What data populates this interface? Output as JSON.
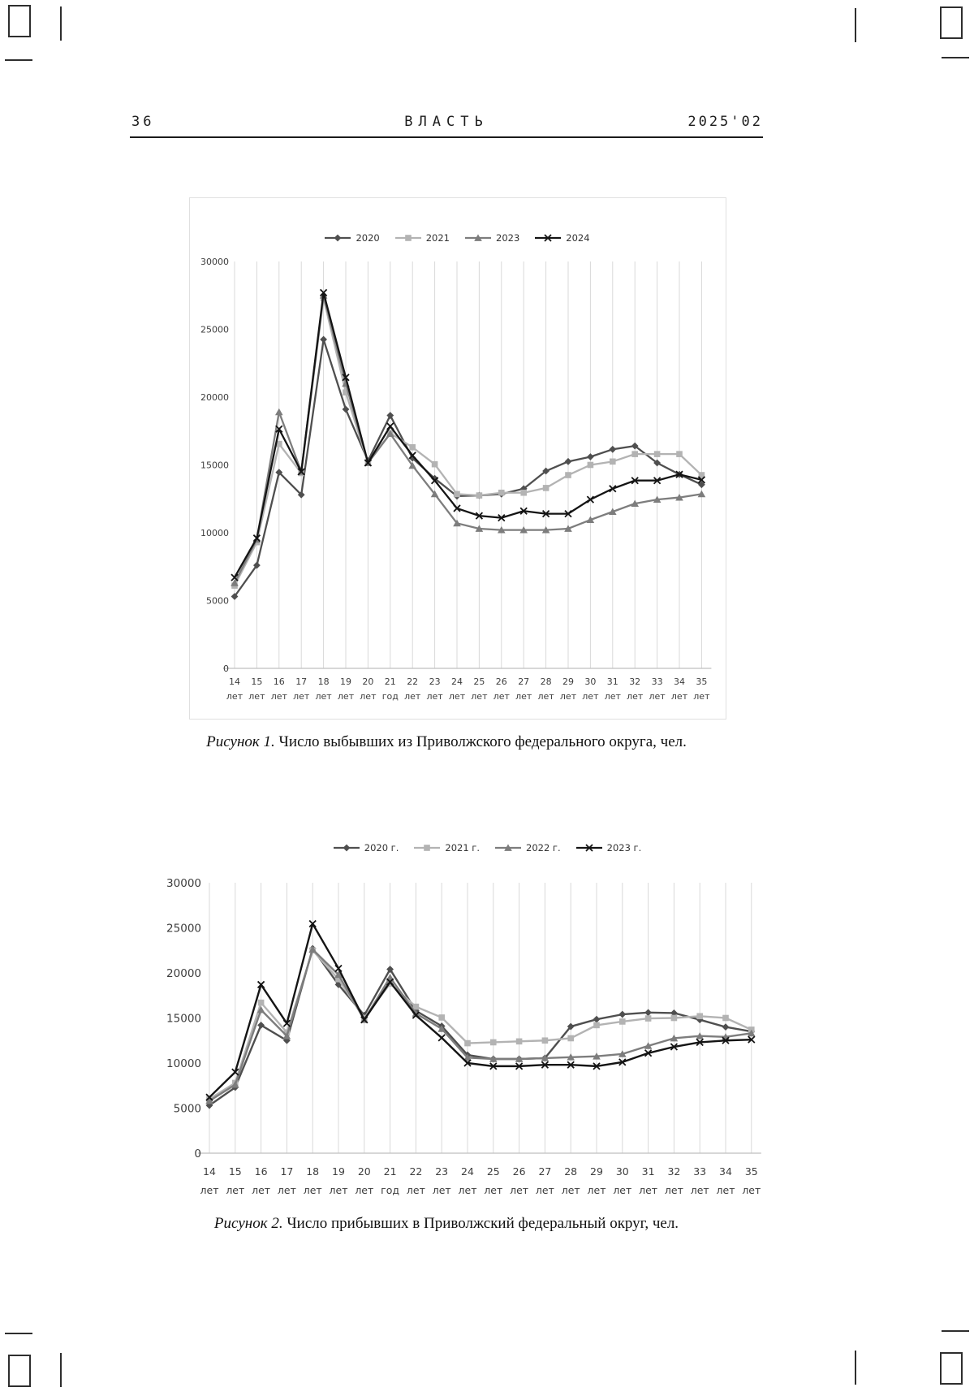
{
  "header": {
    "page_number": "36",
    "journal_title": "ВЛАСТЬ",
    "issue": "2025'02"
  },
  "figures": [
    {
      "caption_label": "Рисунок 1.",
      "caption_text": " Число выбывших из Приволжского федерального округа, чел."
    },
    {
      "caption_label": "Рисунок 2.",
      "caption_text": " Число прибывших в Приволжский федеральный округ, чел."
    }
  ],
  "colors": {
    "grid": "#d9d9d9",
    "axis": "#bfbfbf",
    "tick_text": "#3d3d3d",
    "s2020": "#4f4f4f",
    "s2021": "#b3b3b3",
    "smid": "#7d7d7d",
    "sblack": "#141414"
  },
  "chart_data": [
    {
      "type": "line",
      "title": "Число выбывших из Приволжского федерального округа, чел.",
      "categories": [
        "14 лет",
        "15 лет",
        "16 лет",
        "17 лет",
        "18 лет",
        "19 лет",
        "20 лет",
        "21 год",
        "22 лет",
        "23 лет",
        "24 лет",
        "25 лет",
        "26 лет",
        "27 лет",
        "28 лет",
        "29 лет",
        "30 лет",
        "31 лет",
        "32 лет",
        "33 лет",
        "34 лет",
        "35 лет"
      ],
      "ylim": [
        0,
        30000
      ],
      "yticks": [
        0,
        5000,
        10000,
        15000,
        20000,
        25000,
        30000
      ],
      "grid": "vertical",
      "legend_position": "top",
      "series": [
        {
          "name": "2020",
          "marker": "diamond",
          "color": "#4f4f4f",
          "values": [
            5300,
            7600,
            14450,
            12800,
            24250,
            19100,
            15300,
            18650,
            15500,
            14000,
            12700,
            12750,
            12850,
            13250,
            14550,
            15250,
            15600,
            16150,
            16400,
            15150,
            14300,
            13550
          ]
        },
        {
          "name": "2021",
          "marker": "square",
          "color": "#b3b3b3",
          "values": [
            6100,
            9300,
            16550,
            14400,
            27300,
            20350,
            15150,
            17350,
            16300,
            15050,
            12850,
            12750,
            12950,
            12950,
            13300,
            14250,
            15000,
            15250,
            15800,
            15800,
            15800,
            14250
          ]
        },
        {
          "name": "2023",
          "marker": "triangle",
          "color": "#7d7d7d",
          "values": [
            6300,
            9500,
            18900,
            14500,
            27500,
            21000,
            15150,
            17300,
            14950,
            12850,
            10700,
            10300,
            10200,
            10200,
            10200,
            10300,
            10950,
            11550,
            12150,
            12450,
            12600,
            12850
          ]
        },
        {
          "name": "2024",
          "marker": "x",
          "color": "#141414",
          "values": [
            6700,
            9600,
            17650,
            14500,
            27700,
            21450,
            15150,
            17850,
            15700,
            13850,
            11800,
            11250,
            11100,
            11600,
            11400,
            11400,
            12450,
            13250,
            13850,
            13850,
            14300,
            13900
          ]
        }
      ]
    },
    {
      "type": "line",
      "title": "Число прибывших в Приволжский федеральный округ, чел.",
      "categories": [
        "14 лет",
        "15 лет",
        "16 лет",
        "17 лет",
        "18 лет",
        "19 лет",
        "20 лет",
        "21 год",
        "22 лет",
        "23 лет",
        "24 лет",
        "25 лет",
        "26 лет",
        "27 лет",
        "28 лет",
        "29 лет",
        "30 лет",
        "31 лет",
        "32 лет",
        "33 лет",
        "34 лет",
        "35 лет"
      ],
      "ylim": [
        0,
        30000
      ],
      "yticks": [
        0,
        5000,
        10000,
        15000,
        20000,
        25000,
        30000
      ],
      "grid": "vertical",
      "legend_position": "top",
      "series": [
        {
          "name": "2020 г.",
          "marker": "diamond",
          "color": "#4f4f4f",
          "values": [
            5300,
            7300,
            14200,
            12500,
            22700,
            18700,
            15300,
            20400,
            15800,
            14100,
            10900,
            10450,
            10450,
            10550,
            14050,
            14850,
            15400,
            15600,
            15550,
            14800,
            14000,
            13500
          ]
        },
        {
          "name": "2021 г.",
          "marker": "square",
          "color": "#b3b3b3",
          "values": [
            6000,
            7800,
            16700,
            13400,
            22500,
            19300,
            15000,
            18800,
            16250,
            15050,
            12200,
            12300,
            12400,
            12500,
            12750,
            14200,
            14600,
            14950,
            15000,
            15200,
            15000,
            13700
          ]
        },
        {
          "name": "2022 г.",
          "marker": "triangle",
          "color": "#7d7d7d",
          "values": [
            5800,
            7600,
            15900,
            13000,
            22600,
            19800,
            14800,
            19500,
            15500,
            13800,
            10600,
            10450,
            10450,
            10550,
            10650,
            10750,
            11000,
            11900,
            12750,
            13000,
            12900,
            13300
          ]
        },
        {
          "name": "2023 г.",
          "marker": "x",
          "color": "#141414",
          "values": [
            6200,
            9000,
            18700,
            14400,
            25450,
            20500,
            14800,
            19000,
            15300,
            12800,
            10000,
            9650,
            9650,
            9800,
            9800,
            9650,
            10100,
            11100,
            11800,
            12300,
            12500,
            12600
          ]
        }
      ]
    }
  ]
}
